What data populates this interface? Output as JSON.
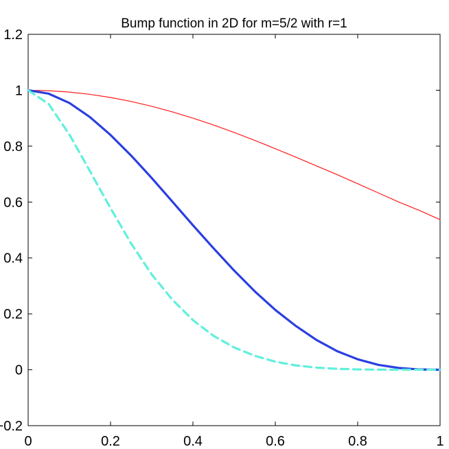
{
  "chart_data": {
    "type": "line",
    "title": "Bump function in 2D for m=5/2 with r=1",
    "xlabel": "",
    "ylabel": "",
    "xlim": [
      0,
      1
    ],
    "ylim": [
      -0.2,
      1.2
    ],
    "x_ticks": [
      0,
      0.2,
      0.4,
      0.6,
      0.8,
      1
    ],
    "x_tick_labels": [
      "0",
      "0.2",
      "0.4",
      "0.6",
      "0.8",
      "1"
    ],
    "y_ticks": [
      -0.2,
      0,
      0.2,
      0.4,
      0.6,
      0.8,
      1,
      1.2
    ],
    "y_tick_labels": [
      "−0.2",
      "0",
      "0.2",
      "0.4",
      "0.6",
      "0.8",
      "1",
      "1.2"
    ],
    "grid": false,
    "legend": "none",
    "x": [
      0,
      0.05,
      0.1,
      0.15,
      0.2,
      0.25,
      0.3,
      0.35,
      0.4,
      0.45,
      0.5,
      0.55,
      0.6,
      0.65,
      0.7,
      0.75,
      0.8,
      0.85,
      0.9,
      0.95,
      1
    ],
    "series": [
      {
        "color": "#ff1a1a",
        "style": "solid-thin",
        "values": [
          1.0,
          0.9982,
          0.9934,
          0.9853,
          0.974,
          0.9598,
          0.9425,
          0.9227,
          0.9002,
          0.8757,
          0.849,
          0.8208,
          0.791,
          0.7605,
          0.7293,
          0.6981,
          0.6656,
          0.6326,
          0.5999,
          0.5699,
          0.537
        ]
      },
      {
        "color": "#2a3fe0",
        "style": "solid-thick",
        "values": [
          1.0,
          0.9876,
          0.9545,
          0.9039,
          0.84,
          0.7663,
          0.686,
          0.6018,
          0.517,
          0.4348,
          0.355,
          0.2807,
          0.214,
          0.1565,
          0.1065,
          0.0666,
          0.0375,
          0.0175,
          0.0063,
          0.001,
          0.0
        ]
      },
      {
        "color": "#5ff0dc",
        "style": "dashed-thick",
        "values": [
          1.0,
          0.9504,
          0.8418,
          0.7106,
          0.5781,
          0.4517,
          0.341,
          0.2508,
          0.1776,
          0.1213,
          0.0798,
          0.05,
          0.0289,
          0.0155,
          0.0076,
          0.0034,
          0.0013,
          0.0004,
          0.0001,
          0.0,
          0.0
        ]
      }
    ]
  }
}
